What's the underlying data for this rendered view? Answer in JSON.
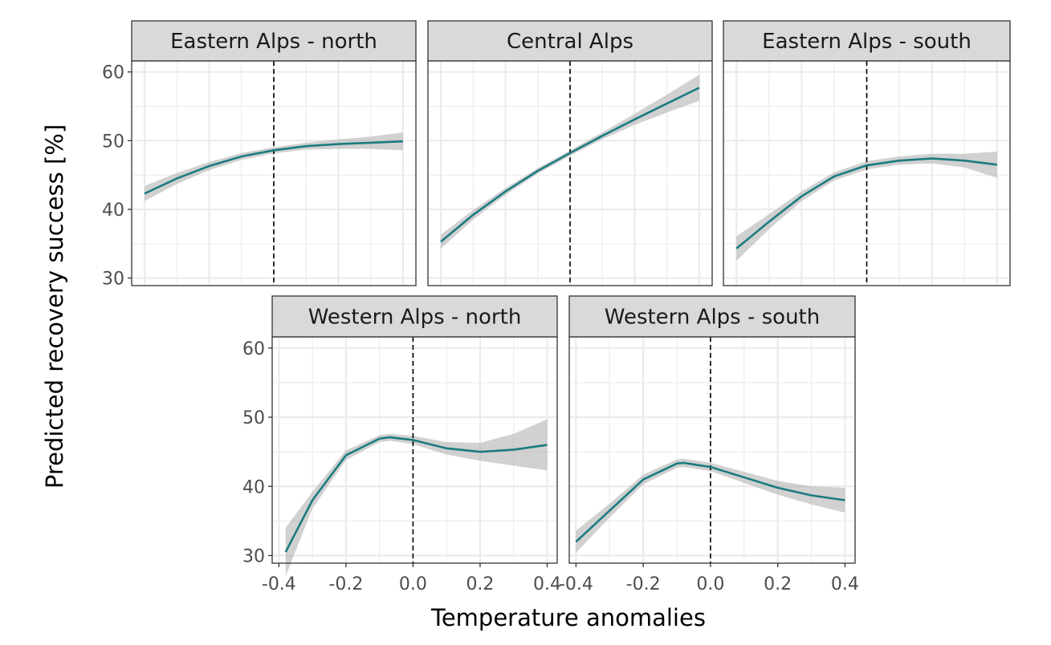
{
  "chart_data": {
    "type": "line",
    "xlabel": "Temperature anomalies",
    "ylabel": "Predicted recovery success [%]",
    "ylim": [
      28.9,
      61.6
    ],
    "yticks": [
      "30",
      "40",
      "50",
      "60"
    ],
    "xticks": [
      "-0.4",
      "-0.2",
      "0.0",
      "0.2",
      "0.4"
    ],
    "grid": true,
    "reference_line_x": 0,
    "colors": {
      "line": "#1b7b80",
      "ribbon": "#b3b3b3",
      "strip": "#d9d9d9",
      "border": "#333333"
    },
    "panels": [
      {
        "title": "Eastern Alps - north",
        "xlim": [
          -0.22,
          0.22
        ],
        "x": [
          -0.2,
          -0.15,
          -0.1,
          -0.05,
          0,
          0.05,
          0.1,
          0.15,
          0.2
        ],
        "y": [
          42.3,
          44.5,
          46.3,
          47.7,
          48.6,
          49.2,
          49.5,
          49.7,
          49.9
        ],
        "ci": [
          1.1,
          0.8,
          0.6,
          0.5,
          0.45,
          0.5,
          0.7,
          0.9,
          1.3
        ]
      },
      {
        "title": "Central Alps",
        "xlim": [
          -0.22,
          0.22
        ],
        "x": [
          -0.2,
          -0.15,
          -0.1,
          -0.05,
          0,
          0.05,
          0.1,
          0.15,
          0.2
        ],
        "y": [
          35.3,
          39.2,
          42.6,
          45.6,
          48.2,
          50.7,
          53.1,
          55.4,
          57.7
        ],
        "ci": [
          1.0,
          0.7,
          0.5,
          0.4,
          0.4,
          0.5,
          0.8,
          1.3,
          1.9
        ]
      },
      {
        "title": "Eastern Alps - south",
        "xlim": [
          -0.22,
          0.22
        ],
        "x": [
          -0.2,
          -0.15,
          -0.1,
          -0.05,
          0,
          0.05,
          0.1,
          0.15,
          0.2
        ],
        "y": [
          34.3,
          38.2,
          41.9,
          44.8,
          46.4,
          47.1,
          47.4,
          47.1,
          46.5
        ],
        "ci": [
          1.8,
          1.1,
          0.7,
          0.6,
          0.6,
          0.6,
          0.7,
          1.0,
          1.9
        ]
      },
      {
        "title": "Western Alps - north",
        "xlim": [
          -0.42,
          0.43
        ],
        "x": [
          -0.38,
          -0.3,
          -0.2,
          -0.1,
          -0.07,
          0,
          0.1,
          0.2,
          0.3,
          0.4
        ],
        "y": [
          30.5,
          38.0,
          44.5,
          46.9,
          47.1,
          46.7,
          45.5,
          45.0,
          45.3,
          46.0
        ],
        "ci": [
          3.5,
          1.2,
          0.7,
          0.5,
          0.5,
          0.6,
          0.9,
          1.3,
          2.3,
          3.7
        ]
      },
      {
        "title": "Western Alps - south",
        "xlim": [
          -0.42,
          0.43
        ],
        "x": [
          -0.4,
          -0.3,
          -0.2,
          -0.1,
          -0.08,
          0,
          0.1,
          0.2,
          0.3,
          0.4
        ],
        "y": [
          32.0,
          36.5,
          41.0,
          43.3,
          43.4,
          42.8,
          41.3,
          39.8,
          38.7,
          38.0
        ],
        "ci": [
          1.6,
          1.0,
          0.7,
          0.6,
          0.6,
          0.6,
          0.8,
          1.0,
          1.3,
          1.8
        ]
      }
    ]
  }
}
